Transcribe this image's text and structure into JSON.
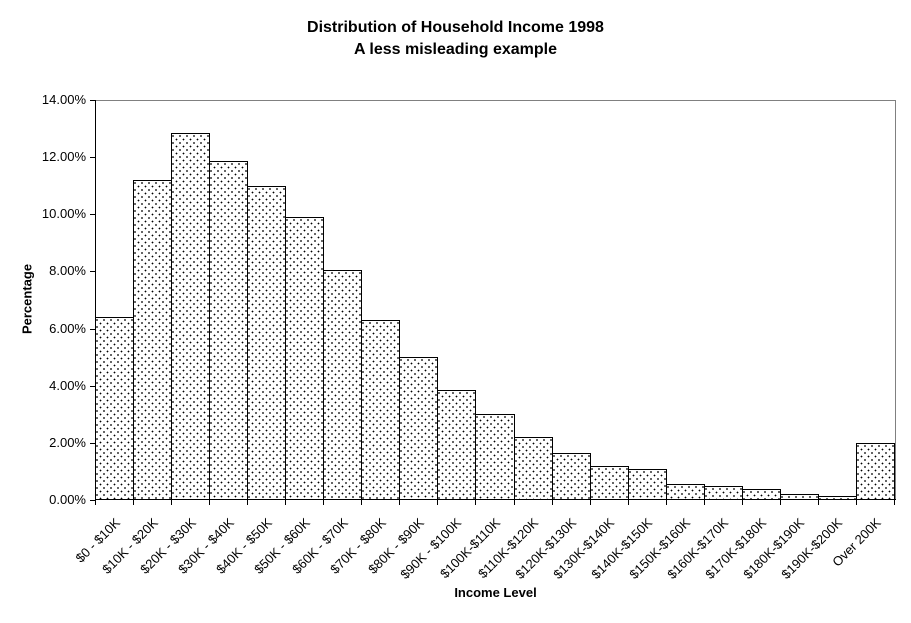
{
  "chart": {
    "accent_black": "#000000",
    "plot_border_color": "#808080",
    "background_color": "#ffffff"
  },
  "chart_data": {
    "type": "bar",
    "title": "Distribution of Household Income 1998",
    "subtitle": "A less misleading example",
    "xlabel": "Income Level",
    "ylabel": "Percentage",
    "categories": [
      "$0 - $10K",
      "$10K - $20K",
      "$20K - $30K",
      "$30K - $40K",
      "$40K - $50K",
      "$50K - $60K",
      "$60K - $70K",
      "$70K - $80K",
      "$80K - $90K",
      "$90K - $100K",
      "$100K-$110K",
      "$110K-$120K",
      "$120K-$130K",
      "$130K-$140K",
      "$140K-$150K",
      "$150K-$160K",
      "$160K-$170K",
      "$170K-$180K",
      "$180K-$190K",
      "$190K-$200K",
      "Over 200K"
    ],
    "values": [
      6.4,
      11.2,
      12.85,
      11.85,
      11.0,
      9.9,
      8.05,
      6.3,
      5.0,
      3.85,
      3.0,
      2.2,
      1.65,
      1.2,
      1.1,
      0.55,
      0.5,
      0.4,
      0.2,
      0.15,
      2.0
    ],
    "ylim": [
      0,
      14
    ],
    "ytick_step": 2,
    "ytick_labels": [
      "0.00%",
      "2.00%",
      "4.00%",
      "6.00%",
      "8.00%",
      "10.00%",
      "12.00%",
      "14.00%"
    ],
    "grid": false,
    "legend": null,
    "bar_fill": "white-with-black-dot-pattern",
    "bar_border_color": "#000000",
    "plot_border_color": "#808080"
  }
}
